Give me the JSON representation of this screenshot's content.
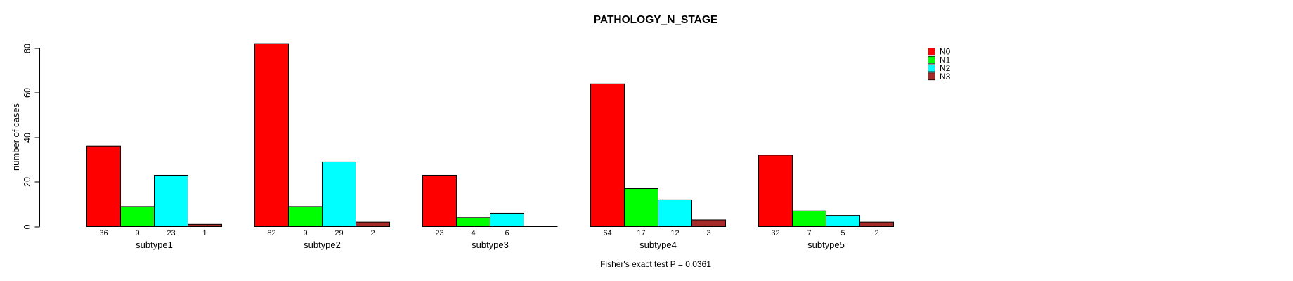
{
  "chart_data": {
    "type": "bar",
    "title": "PATHOLOGY_N_STAGE",
    "xlabel": "",
    "ylabel": "number of cases",
    "ylim": [
      0,
      80
    ],
    "yticks": [
      0,
      20,
      40,
      60,
      80
    ],
    "grid": false,
    "legend_position": "top-right",
    "bar_value_labels_shown": true,
    "categories": [
      "subtype1",
      "subtype2",
      "subtype3",
      "subtype4",
      "subtype5"
    ],
    "series": [
      {
        "name": "N0",
        "color": "#ff0000",
        "values": [
          36,
          82,
          23,
          64,
          32
        ]
      },
      {
        "name": "N1",
        "color": "#00ff00",
        "values": [
          9,
          9,
          4,
          17,
          7
        ]
      },
      {
        "name": "N2",
        "color": "#00ffff",
        "values": [
          23,
          29,
          6,
          12,
          5
        ]
      },
      {
        "name": "N3",
        "color": "#a52a2a",
        "values": [
          1,
          2,
          0,
          3,
          2
        ]
      }
    ],
    "annotation": "Fisher's exact test P = 0.0361"
  },
  "colors": {
    "background": "#ffffff",
    "axis": "#000000",
    "text": "#000000"
  }
}
